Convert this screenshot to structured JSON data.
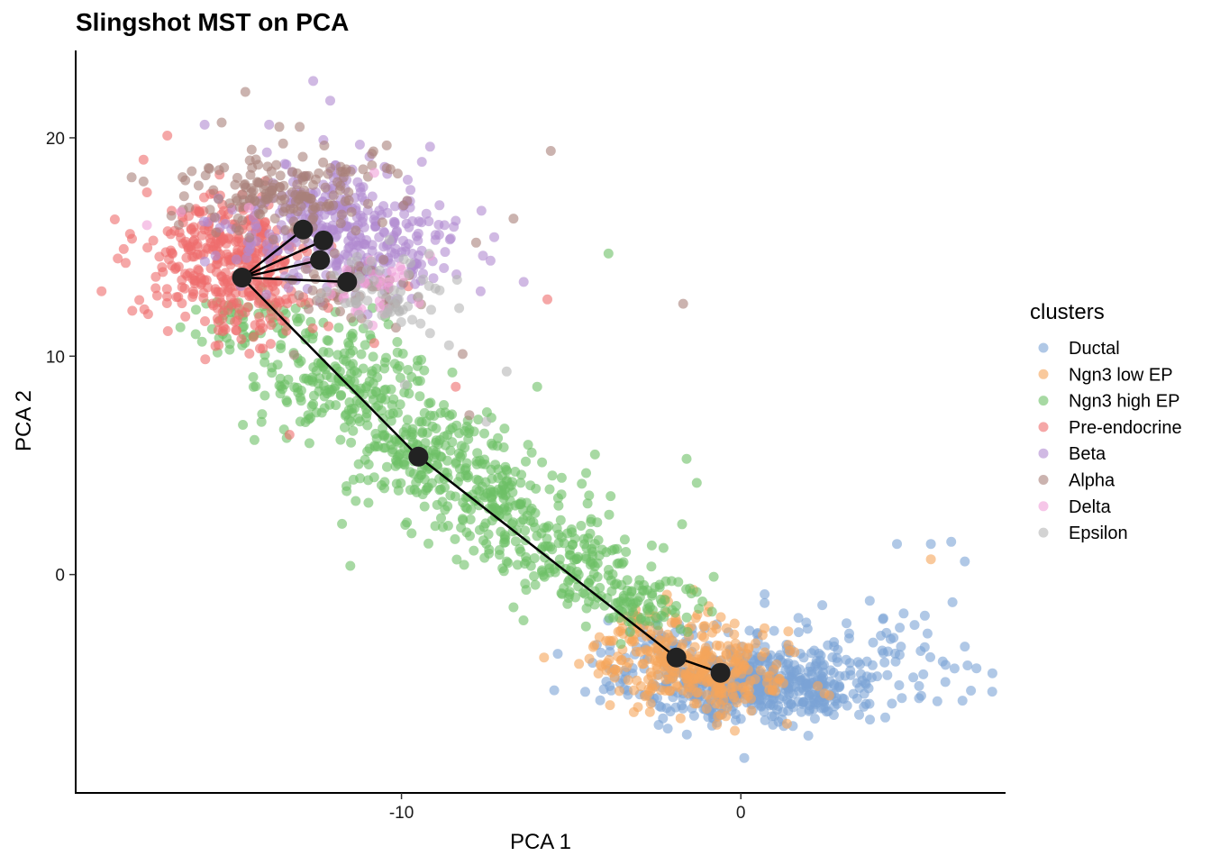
{
  "chart_data": {
    "type": "scatter",
    "title": "Slingshot MST on PCA",
    "xlabel": "PCA 1",
    "ylabel": "PCA 2",
    "xlim": [
      -19.6,
      7.8
    ],
    "ylim": [
      -10.0,
      24.0
    ],
    "x_ticks": [
      {
        "value": -10,
        "label": "-10"
      },
      {
        "value": 0,
        "label": "0"
      }
    ],
    "y_ticks": [
      {
        "value": 0,
        "label": "0"
      },
      {
        "value": 10,
        "label": "10"
      },
      {
        "value": 20,
        "label": "20"
      }
    ],
    "grid": false,
    "point_opacity": 0.6,
    "legend": {
      "title": "clusters",
      "position": "right"
    },
    "series": [
      {
        "name": "Ductal",
        "color": "#7ba3d6",
        "clouds": [
          {
            "center": [
              0.5,
              -5.0
            ],
            "spread": [
              1.8,
              0.9
            ],
            "count": 520
          },
          {
            "center": [
              -2.2,
              -3.6
            ],
            "spread": [
              1.1,
              1.0
            ],
            "count": 70
          },
          {
            "center": [
              4.0,
              -3.8
            ],
            "spread": [
              1.6,
              1.0
            ],
            "count": 60
          }
        ],
        "points": [
          [
            6.2,
            1.5
          ],
          [
            5.6,
            1.4
          ],
          [
            6.6,
            0.6
          ],
          [
            4.6,
            1.4
          ],
          [
            2.4,
            -1.4
          ],
          [
            6.6,
            -3.3
          ],
          [
            5.5,
            -2.7
          ],
          [
            4.2,
            -2.0
          ],
          [
            -5.5,
            -5.3
          ],
          [
            0.1,
            -8.4
          ],
          [
            0.7,
            -0.9
          ],
          [
            0.7,
            -1.3
          ],
          [
            4.5,
            -2.9
          ],
          [
            5.3,
            -3.5
          ],
          [
            3.8,
            -1.2
          ]
        ]
      },
      {
        "name": "Ngn3 low EP",
        "color": "#f5a55a",
        "clouds": [
          {
            "center": [
              -2.0,
              -3.5
            ],
            "spread": [
              1.2,
              1.0
            ],
            "count": 200
          },
          {
            "center": [
              -0.6,
              -5.0
            ],
            "spread": [
              1.1,
              0.8
            ],
            "count": 140
          }
        ],
        "points": [
          [
            5.6,
            0.7
          ],
          [
            -5.8,
            -3.8
          ],
          [
            -1.4,
            -0.7
          ],
          [
            1.4,
            -2.6
          ],
          [
            -4.1,
            -4.2
          ],
          [
            -3.1,
            -1.6
          ]
        ]
      },
      {
        "name": "Ngn3 high EP",
        "color": "#6cc065",
        "clouds": [
          {
            "center": [
              -14.2,
              11.4
            ],
            "spread": [
              1.3,
              0.9
            ],
            "count": 70
          },
          {
            "center": [
              -11.7,
              8.9
            ],
            "spread": [
              1.2,
              1.2
            ],
            "count": 190
          },
          {
            "center": [
              -9.3,
              5.6
            ],
            "spread": [
              1.2,
              1.1
            ],
            "count": 190
          },
          {
            "center": [
              -7.2,
              3.2
            ],
            "spread": [
              1.1,
              1.0
            ],
            "count": 150
          },
          {
            "center": [
              -5.2,
              0.9
            ],
            "spread": [
              1.1,
              1.0
            ],
            "count": 120
          },
          {
            "center": [
              -3.2,
              -1.2
            ],
            "spread": [
              1.0,
              0.9
            ],
            "count": 100
          }
        ],
        "points": [
          [
            -3.9,
            14.7
          ],
          [
            -6.0,
            8.6
          ],
          [
            -1.6,
            5.3
          ],
          [
            -1.3,
            4.2
          ],
          [
            -6.9,
            0.6
          ],
          [
            -6.7,
            -1.5
          ],
          [
            -4.3,
            5.5
          ],
          [
            -1.3,
            -0.8
          ],
          [
            -0.8,
            -0.1
          ]
        ]
      },
      {
        "name": "Pre-endocrine",
        "color": "#ee6c6c",
        "clouds": [
          {
            "center": [
              -15.2,
              14.4
            ],
            "spread": [
              1.2,
              1.4
            ],
            "count": 320
          },
          {
            "center": [
              -14.5,
              12.0
            ],
            "spread": [
              1.0,
              1.0
            ],
            "count": 60
          }
        ],
        "points": [
          [
            -18.0,
            15.6
          ],
          [
            -17.5,
            17.5
          ],
          [
            -17.6,
            19.0
          ],
          [
            -16.9,
            20.1
          ],
          [
            -13.3,
            6.4
          ],
          [
            -11.0,
            14.2
          ],
          [
            -8.4,
            8.6
          ],
          [
            -5.7,
            12.6
          ],
          [
            -9.8,
            13.2
          ],
          [
            -10.8,
            10.6
          ]
        ]
      },
      {
        "name": "Beta",
        "color": "#b08ad0",
        "clouds": [
          {
            "center": [
              -12.0,
              16.0
            ],
            "spread": [
              1.5,
              1.3
            ],
            "count": 260
          },
          {
            "center": [
              -10.5,
              14.8
            ],
            "spread": [
              1.2,
              1.2
            ],
            "count": 100
          }
        ],
        "points": [
          [
            -12.6,
            22.6
          ],
          [
            -12.1,
            21.7
          ],
          [
            -9.4,
            18.9
          ],
          [
            -8.4,
            16.2
          ],
          [
            -6.4,
            13.4
          ],
          [
            -15.8,
            20.6
          ],
          [
            -13.9,
            20.6
          ],
          [
            -7.6,
            14.6
          ],
          [
            -9.6,
            13.3
          ],
          [
            -12.3,
            19.9
          ]
        ]
      },
      {
        "name": "Alpha",
        "color": "#a98079",
        "clouds": [
          {
            "center": [
              -13.5,
              17.6
            ],
            "spread": [
              1.4,
              1.0
            ],
            "count": 170
          },
          {
            "center": [
              -11.5,
              13.0
            ],
            "spread": [
              1.0,
              1.0
            ],
            "count": 50
          }
        ],
        "points": [
          [
            -14.6,
            22.1
          ],
          [
            -15.3,
            20.7
          ],
          [
            -13.6,
            20.5
          ],
          [
            -13.0,
            20.5
          ],
          [
            -5.6,
            19.4
          ],
          [
            -6.7,
            16.3
          ],
          [
            -1.7,
            12.4
          ],
          [
            -8.0,
            7.3
          ],
          [
            -8.2,
            10.1
          ],
          [
            -17.6,
            18.0
          ],
          [
            -7.8,
            15.2
          ]
        ]
      },
      {
        "name": "Delta",
        "color": "#f0a0d8",
        "clouds": [
          {
            "center": [
              -11.0,
              13.2
            ],
            "spread": [
              0.8,
              0.7
            ],
            "count": 30
          }
        ],
        "points": [
          [
            -17.5,
            16.0
          ],
          [
            -16.5,
            16.6
          ],
          [
            -14.5,
            16.8
          ],
          [
            -10.8,
            18.4
          ]
        ]
      },
      {
        "name": "Epsilon",
        "color": "#b5b5b5",
        "clouds": [
          {
            "center": [
              -10.3,
              13.0
            ],
            "spread": [
              0.9,
              0.9
            ],
            "count": 55
          }
        ],
        "points": [
          [
            -6.9,
            9.3
          ],
          [
            -7.5,
            7.0
          ],
          [
            -8.6,
            10.5
          ],
          [
            -9.9,
            8.7
          ],
          [
            -8.3,
            12.2
          ],
          [
            -9.0,
            13.1
          ]
        ]
      }
    ],
    "mst": {
      "nodes": [
        [
          -14.7,
          13.6
        ],
        [
          -12.9,
          15.8
        ],
        [
          -12.3,
          15.3
        ],
        [
          -12.4,
          14.4
        ],
        [
          -11.6,
          13.4
        ],
        [
          -9.5,
          5.4
        ],
        [
          -1.9,
          -3.8
        ],
        [
          -0.6,
          -4.5
        ]
      ],
      "edges": [
        [
          0,
          1
        ],
        [
          0,
          2
        ],
        [
          0,
          3
        ],
        [
          0,
          4
        ],
        [
          0,
          5
        ],
        [
          5,
          6
        ],
        [
          6,
          7
        ]
      ],
      "color": "#000000",
      "node_color": "#222222"
    }
  }
}
